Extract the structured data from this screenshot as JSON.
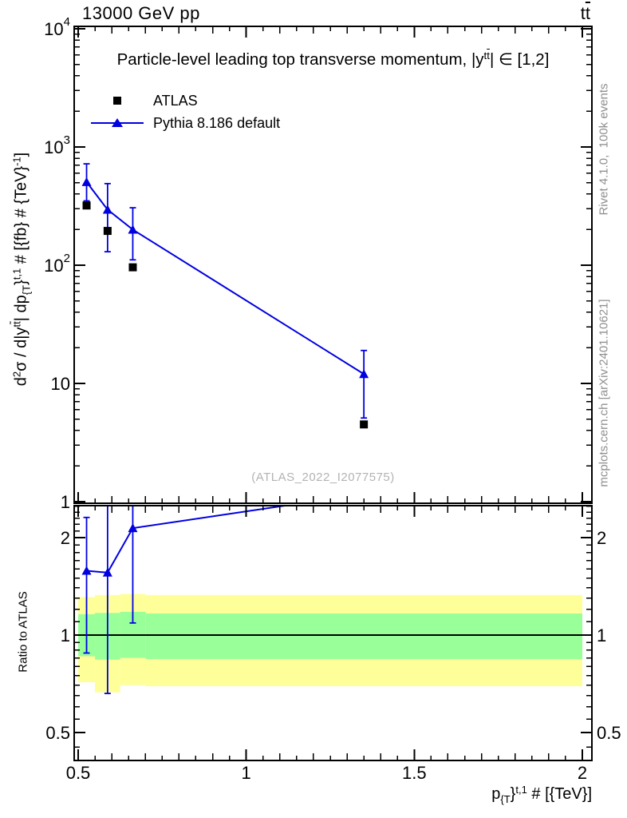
{
  "header": {
    "title_left": "13000 GeV pp",
    "title_right_runs": [
      {
        "t": "t"
      },
      {
        "t": "t",
        "s": "over"
      }
    ]
  },
  "main_panel": {
    "subtitle_runs": [
      {
        "t": "Particle-level leading top transverse momentum, |y"
      },
      {
        "t": "t",
        "s": "sup"
      },
      {
        "t": "t",
        "s": "sup over"
      },
      {
        "t": "| ∈ [1,2]"
      }
    ],
    "ylabel_runs": [
      {
        "t": "d"
      },
      {
        "t": "2",
        "s": "sup"
      },
      {
        "t": "σ / d|y"
      },
      {
        "t": "t",
        "s": "sup"
      },
      {
        "t": "t",
        "s": "sup over"
      },
      {
        "t": "| dp"
      },
      {
        "t": "{T",
        "s": "sub"
      },
      {
        "t": "}"
      },
      {
        "t": "t,1",
        "s": "sup"
      },
      {
        "t": " # [{fb} # {TeV}"
      },
      {
        "t": "-1",
        "s": "sup"
      },
      {
        "t": "]"
      }
    ],
    "xlabel_runs": [
      {
        "t": "p"
      },
      {
        "t": "{T",
        "s": "sub"
      },
      {
        "t": "}"
      },
      {
        "t": "t,1",
        "s": "sup"
      },
      {
        "t": " # [{TeV}]"
      }
    ]
  },
  "ratio_panel": {
    "ylabel": "Ratio to ATLAS"
  },
  "legend": {
    "items": [
      {
        "label": "ATLAS",
        "marker": "filled-square",
        "color": "#000000"
      },
      {
        "label": "Pythia 8.186 default",
        "marker": "line-with-triangle",
        "color": "#0000e0"
      }
    ]
  },
  "texts": {
    "watermark": "(ATLAS_2022_I2077575)",
    "rivet": "Rivet 4.1.0,  100k events",
    "mcplots": "mcplots.cern.ch [arXiv:2401.10621]"
  },
  "colors": {
    "blue": "#0000e0",
    "yellow_band": "#ffff99",
    "green_band": "#99ff99",
    "gray_text": "#8f8f8f",
    "watermark_text": "#b3b3b3"
  },
  "chart_data": [
    {
      "type": "scatter",
      "panel": "main",
      "title": "Particle-level leading top transverse momentum, |y^tt| ∈ [1,2]",
      "xlabel": "p_{T}^{t,1} # [{TeV}]",
      "ylabel": "d^2σ / d|y^tt| dp_{T}^{t,1} # [{fb} # {TeV}^-1]",
      "xscale": "linear",
      "yscale": "log",
      "xlim": [
        0.49,
        2.03
      ],
      "ylim": [
        1,
        10500
      ],
      "grid": false,
      "legend_position": "top-left-inside",
      "series": [
        {
          "name": "ATLAS",
          "style": "scatter",
          "marker": "filled-square",
          "color": "#000000",
          "x": [
            0.525,
            0.5875,
            0.6625,
            1.35
          ],
          "y": [
            320,
            195,
            96,
            4.5
          ]
        },
        {
          "name": "Pythia 8.186 default",
          "style": "line+scatter",
          "marker": "filled-triangle-up",
          "color": "#0000e0",
          "x": [
            0.525,
            0.5875,
            0.6625,
            1.35
          ],
          "y": [
            505,
            295,
            200,
            12
          ],
          "y_err_low_abs": [
            350,
            130,
            111,
            5.1
          ],
          "y_err_high_abs": [
            720,
            490,
            306,
            19
          ]
        }
      ],
      "yticks": [
        {
          "v": 10000,
          "runs": [
            {
              "t": "10"
            },
            {
              "t": "4",
              "s": "sup"
            }
          ]
        },
        {
          "v": 1000,
          "runs": [
            {
              "t": "10"
            },
            {
              "t": "3",
              "s": "sup"
            }
          ]
        },
        {
          "v": 100,
          "runs": [
            {
              "t": "10"
            },
            {
              "t": "2",
              "s": "sup"
            }
          ]
        },
        {
          "v": 10,
          "runs": [
            {
              "t": "10"
            }
          ]
        },
        {
          "v": 1,
          "runs": [
            {
              "t": "1"
            }
          ]
        }
      ],
      "xticks": [
        {
          "v": 0.5,
          "label": "0.5"
        },
        {
          "v": 1,
          "label": "1"
        },
        {
          "v": 1.5,
          "label": "1.5"
        },
        {
          "v": 2,
          "label": "2"
        }
      ]
    },
    {
      "type": "ratio",
      "panel": "ratio",
      "ylabel": "Ratio to ATLAS",
      "yscale": "log",
      "ylim": [
        0.41,
        2.51
      ],
      "reference_line": 1,
      "bands": {
        "bin_edges": [
          0.5,
          0.55,
          0.625,
          0.7,
          2.0
        ],
        "yellow_low": [
          0.715,
          0.665,
          0.7,
          0.695
        ],
        "yellow_high": [
          1.31,
          1.33,
          1.34,
          1.33
        ],
        "green_low": [
          0.86,
          0.84,
          0.85,
          0.843
        ],
        "green_high": [
          1.16,
          1.17,
          1.18,
          1.166
        ]
      },
      "series": [
        {
          "name": "Pythia 8.186 default / ATLAS",
          "style": "line+scatter",
          "marker": "filled-triangle-up",
          "color": "#0000e0",
          "x": [
            0.525,
            0.5875,
            0.6625,
            1.35
          ],
          "y": [
            1.58,
            1.56,
            2.14,
            2.73
          ],
          "y_err_low_abs": [
            0.88,
            0.66,
            1.09,
            null
          ],
          "y_err_high_abs": [
            2.31,
            2.8,
            2.8,
            null
          ]
        }
      ],
      "yticks": [
        {
          "v": 2,
          "label": "2"
        },
        {
          "v": 1,
          "label": "1"
        },
        {
          "v": 0.5,
          "label": "0.5"
        }
      ]
    }
  ]
}
